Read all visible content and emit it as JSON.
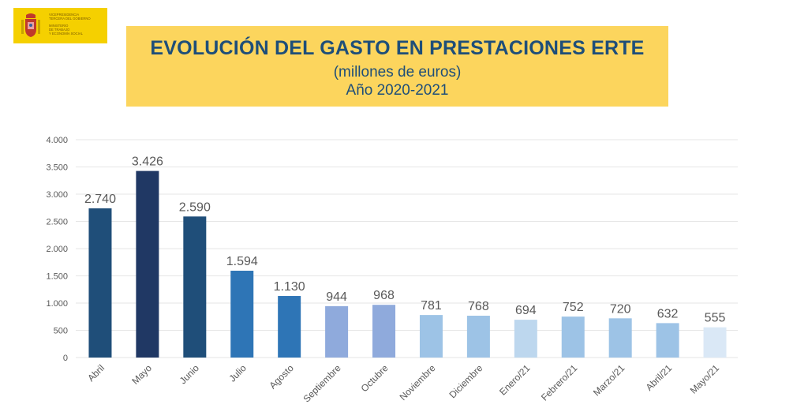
{
  "logo": {
    "lines": [
      "VICEPRESIDENCIA",
      "TERCERA DEL GOBIERNO",
      "MINISTERIO",
      "DE TRABAJO",
      "Y ECONOMÍA SOCIAL"
    ],
    "color": "#f5d000"
  },
  "header": {
    "title": "EVOLUCIÓN DEL GASTO EN PRESTACIONES ERTE",
    "subtitle": "(millones de euros)",
    "period": "Año 2020-2021",
    "background": "#fcd55d",
    "text_color": "#1e4e79"
  },
  "chart_data": {
    "type": "bar",
    "title": "EVOLUCIÓN DEL GASTO EN PRESTACIONES ERTE",
    "subtitle": "(millones de euros) Año 2020-2021",
    "xlabel": "",
    "ylabel": "",
    "ylim": [
      0,
      4000
    ],
    "yticks": [
      0,
      500,
      1000,
      1500,
      2000,
      2500,
      3000,
      3500,
      4000
    ],
    "ytick_labels": [
      "0",
      "500",
      "1.000",
      "1.500",
      "2.000",
      "2.500",
      "3.000",
      "3.500",
      "4.000"
    ],
    "grid": true,
    "legend": "none",
    "categories": [
      "Abril",
      "Mayo",
      "Junio",
      "Julio",
      "Agosto",
      "Septiembre",
      "Octubre",
      "Noviembre",
      "Diciembre",
      "Enero/21",
      "Febrero/21",
      "Marzo/21",
      "Abril/21",
      "Mayo/21"
    ],
    "values": [
      2740,
      3426,
      2590,
      1594,
      1130,
      944,
      968,
      781,
      768,
      694,
      752,
      720,
      632,
      555
    ],
    "value_labels": [
      "2.740",
      "3.426",
      "2.590",
      "1.594",
      "1.130",
      "944",
      "968",
      "781",
      "768",
      "694",
      "752",
      "720",
      "632",
      "555"
    ],
    "bar_colors": [
      "#1f4e79",
      "#203864",
      "#1f4e79",
      "#2e75b6",
      "#2e75b6",
      "#8faadc",
      "#8faadc",
      "#9dc3e6",
      "#9dc3e6",
      "#bdd7ee",
      "#9dc3e6",
      "#9dc3e6",
      "#9dc3e6",
      "#dae8f6"
    ]
  }
}
